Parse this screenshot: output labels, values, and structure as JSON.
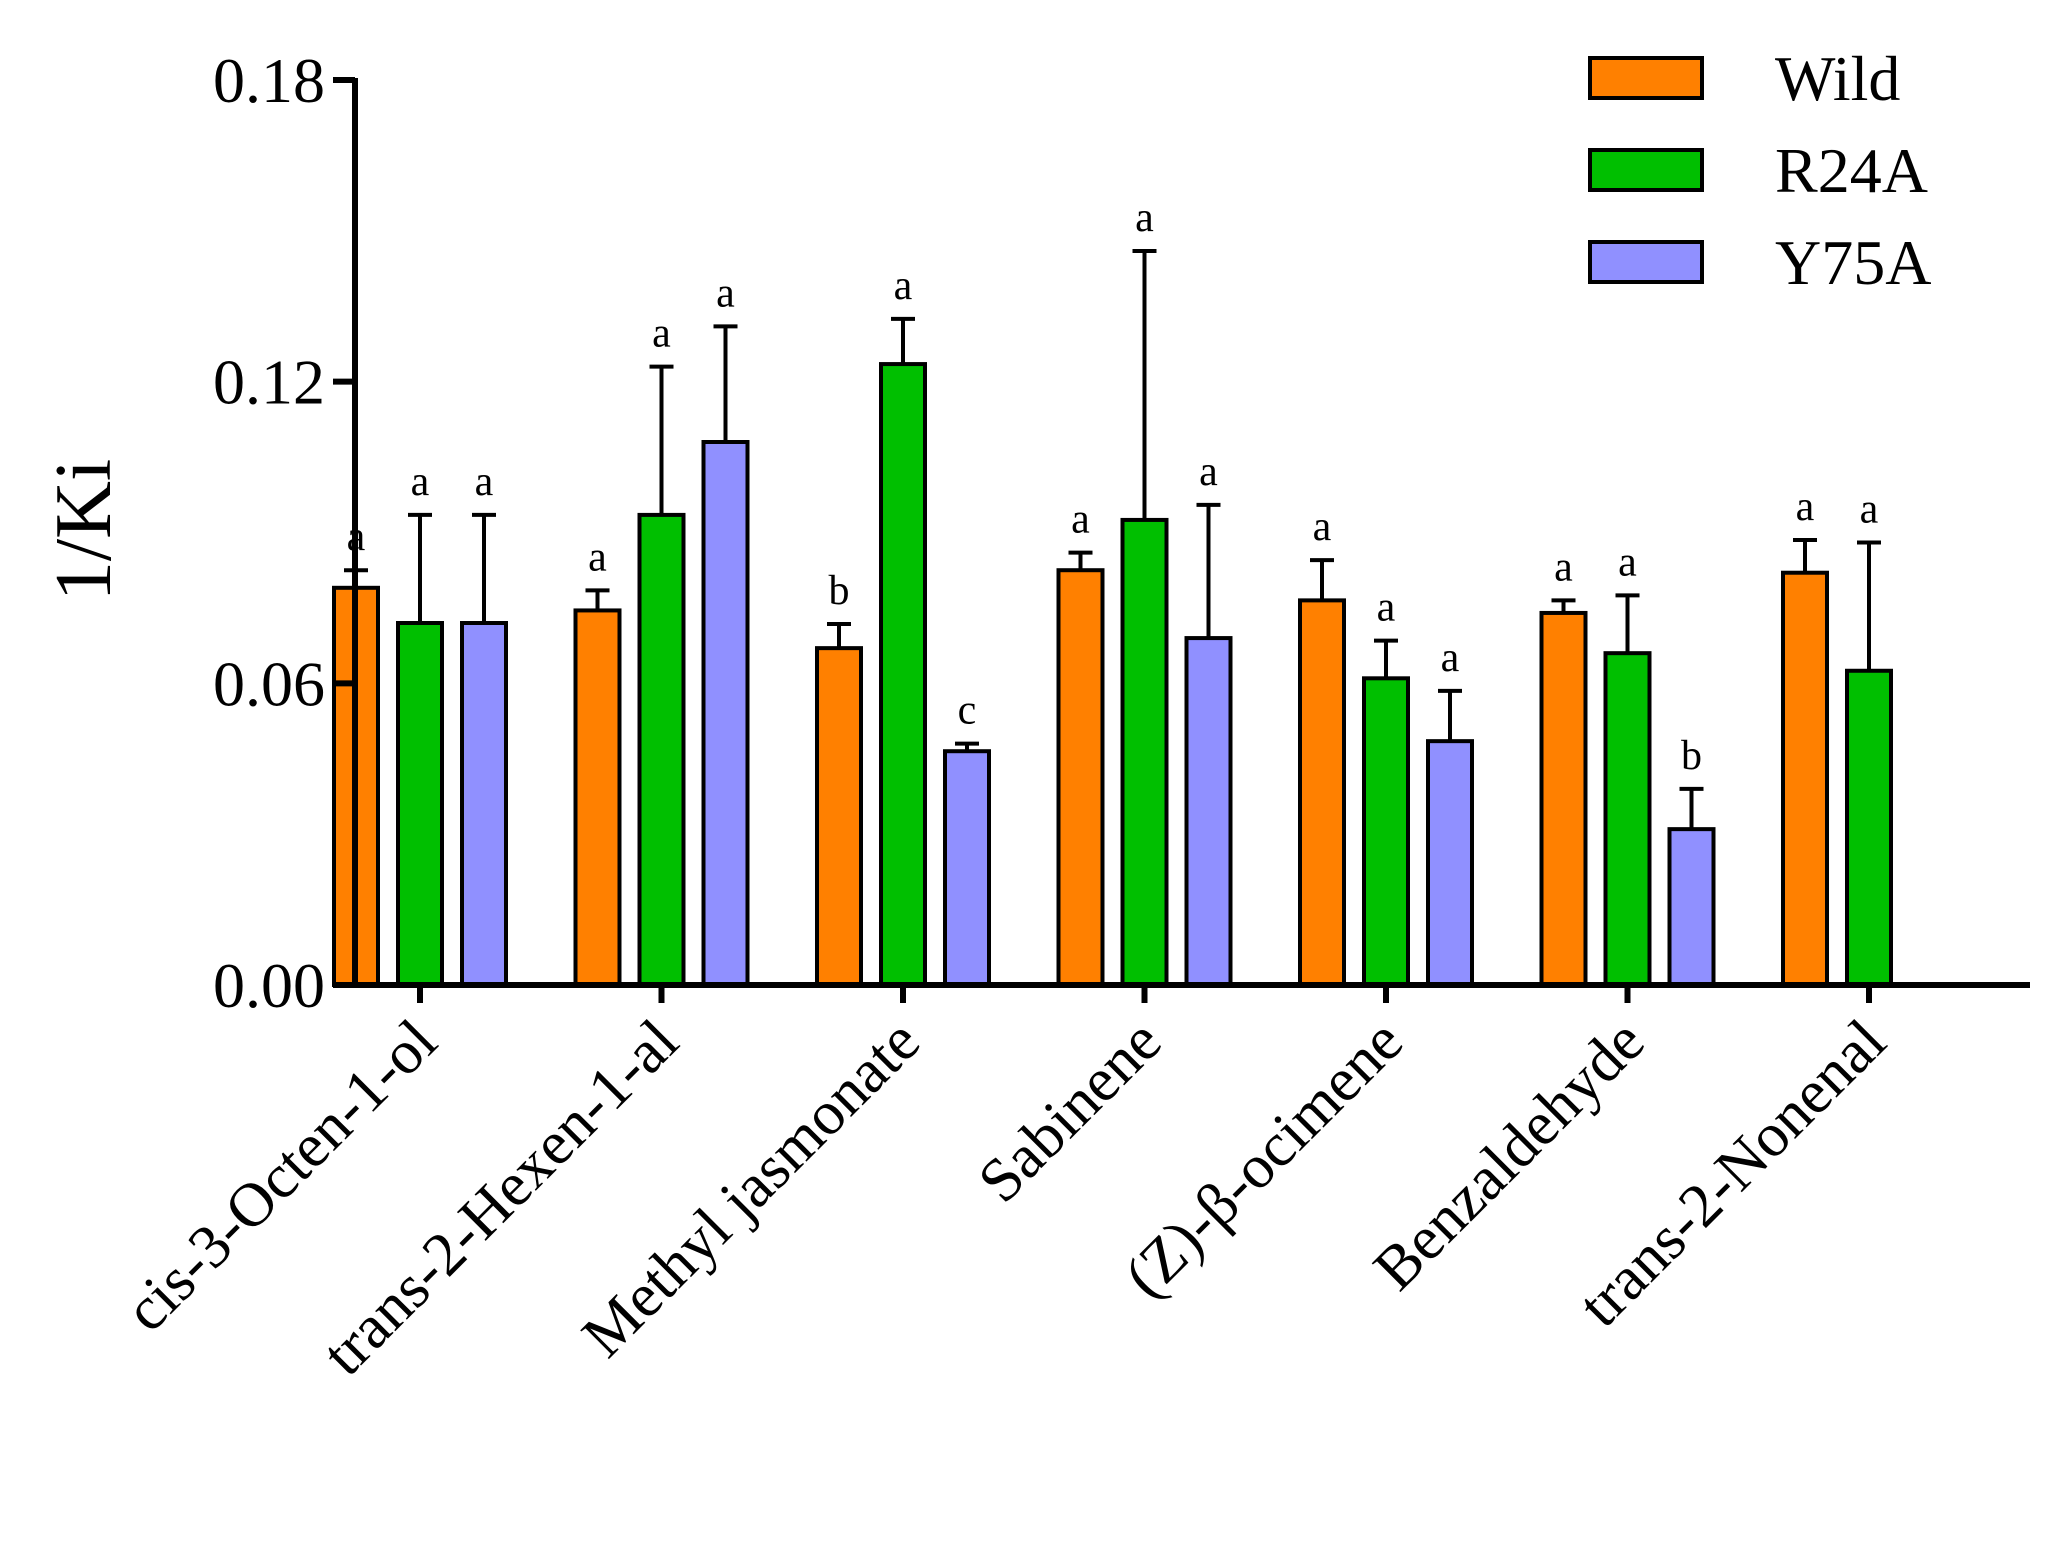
{
  "chart_data": {
    "type": "bar",
    "title": "",
    "xlabel": "",
    "ylabel": "1/Ki",
    "ylim": [
      0,
      0.18
    ],
    "yticks": [
      "0.00",
      "0.06",
      "0.12",
      "0.18"
    ],
    "grid": false,
    "legend_position": "top-right",
    "categories": [
      "cis-3-Octen-1-ol",
      "trans-2-Hexen-1-al",
      "Methyl jasmonate",
      "Sabinene",
      "(Z)-β-ocimene",
      "Benzaldehyde",
      "trans-2-Nonenal"
    ],
    "series": [
      {
        "name": "Wild",
        "color": "#FF8000",
        "values": [
          0.079,
          0.0745,
          0.067,
          0.0825,
          0.0765,
          0.074,
          0.082
        ],
        "errors": [
          0.0035,
          0.004,
          0.0048,
          0.0035,
          0.008,
          0.0025,
          0.0065
        ],
        "letters": [
          "a",
          "a",
          "b",
          "a",
          "a",
          "a",
          "a"
        ]
      },
      {
        "name": "R24A",
        "color": "#00BF00",
        "values": [
          0.072,
          0.0935,
          0.1235,
          0.0925,
          0.061,
          0.066,
          0.0625
        ],
        "errors": [
          0.0215,
          0.0295,
          0.009,
          0.0535,
          0.0075,
          0.0115,
          0.0255
        ],
        "letters": [
          "a",
          "a",
          "a",
          "a",
          "a",
          "a",
          "a"
        ]
      },
      {
        "name": "Y75A",
        "color": "#9090FF",
        "values": [
          0.072,
          0.108,
          0.0465,
          0.069,
          0.0485,
          0.031,
          null
        ],
        "errors": [
          0.0215,
          0.023,
          0.0015,
          0.0265,
          0.01,
          0.008,
          null
        ],
        "letters": [
          "a",
          "a",
          "c",
          "a",
          "a",
          "b",
          null
        ]
      }
    ]
  }
}
